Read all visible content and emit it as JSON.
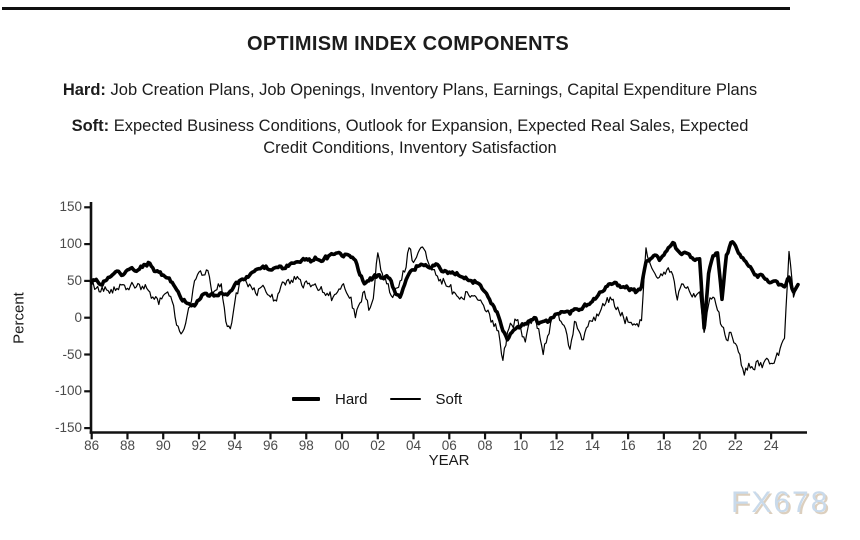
{
  "header": {
    "title": "OPTIMISM INDEX COMPONENTS",
    "hard_prefix": "Hard:",
    "hard_text": "Job Creation Plans, Job Openings, Inventory Plans, Earnings, Capital Expenditure Plans",
    "soft_prefix": "Soft:",
    "soft_line1": "Expected Business Conditions, Outlook for Expansion, Expected Real Sales, Expected",
    "soft_line2": "Credit Conditions, Inventory Satisfaction"
  },
  "watermark": "FX678",
  "colors": {
    "axis": "#111111",
    "tick_text": "#4a4a4a",
    "text": "#1c1c1c",
    "series": "#000000",
    "watermark": "#c9daeb",
    "watermark_shadow": "#dccfbe"
  },
  "chart_data": {
    "type": "line",
    "title": "OPTIMISM INDEX COMPONENTS",
    "xlabel": "YEAR",
    "ylabel": "Percent",
    "grid": false,
    "legend_position": "inside-bottom-center",
    "ylim": [
      -150,
      150
    ],
    "y_ticks": [
      150,
      100,
      50,
      0,
      -50,
      -100,
      -150
    ],
    "x_tick_years": [
      1986,
      1988,
      1990,
      1992,
      1994,
      1996,
      1998,
      2000,
      2002,
      2004,
      2006,
      2008,
      2010,
      2012,
      2014,
      2016,
      2018,
      2020,
      2022,
      2024
    ],
    "x_tick_labels": [
      "86",
      "88",
      "90",
      "92",
      "94",
      "96",
      "98",
      "00",
      "02",
      "04",
      "06",
      "08",
      "10",
      "12",
      "14",
      "16",
      "18",
      "20",
      "22",
      "24"
    ],
    "x_start_year": 1986,
    "x_step_years": 0.25,
    "x_end_year": 2025.5,
    "series": [
      {
        "name": "Hard",
        "stroke_width": 3.6,
        "values": [
          48,
          52,
          45,
          50,
          55,
          60,
          63,
          58,
          65,
          68,
          63,
          70,
          72,
          74,
          63,
          62,
          58,
          54,
          48,
          38,
          26,
          21,
          18,
          16,
          24,
          32,
          30,
          33,
          30,
          34,
          32,
          36,
          45,
          50,
          52,
          55,
          62,
          66,
          68,
          70,
          65,
          68,
          70,
          67,
          70,
          74,
          76,
          78,
          80,
          76,
          82,
          78,
          80,
          84,
          86,
          88,
          84,
          86,
          82,
          78,
          58,
          46,
          50,
          55,
          58,
          54,
          57,
          50,
          32,
          28,
          45,
          60,
          65,
          70,
          72,
          70,
          68,
          73,
          66,
          64,
          62,
          60,
          58,
          55,
          52,
          50,
          48,
          44,
          35,
          25,
          15,
          2,
          -18,
          -30,
          -20,
          -14,
          -12,
          -8,
          -4,
          0,
          -8,
          -5,
          -6,
          0,
          5,
          8,
          8,
          5,
          12,
          10,
          15,
          18,
          22,
          28,
          35,
          42,
          46,
          48,
          44,
          42,
          40,
          38,
          36,
          42,
          76,
          80,
          85,
          78,
          85,
          95,
          102,
          92,
          86,
          88,
          82,
          78,
          80,
          -14,
          60,
          84,
          88,
          25,
          85,
          102,
          98,
          86,
          78,
          70,
          62,
          55,
          58,
          52,
          48,
          50,
          45,
          42,
          55,
          35,
          45
        ]
      },
      {
        "name": "Soft",
        "stroke_width": 1.2,
        "values": [
          45,
          40,
          35,
          42,
          33,
          42,
          38,
          45,
          40,
          48,
          42,
          38,
          45,
          35,
          25,
          18,
          30,
          35,
          22,
          -10,
          -22,
          -8,
          15,
          50,
          62,
          58,
          64,
          30,
          38,
          46,
          -5,
          -15,
          20,
          45,
          50,
          42,
          38,
          30,
          42,
          35,
          28,
          24,
          35,
          48,
          52,
          48,
          56,
          44,
          50,
          42,
          46,
          38,
          34,
          30,
          28,
          35,
          44,
          34,
          28,
          0,
          20,
          36,
          10,
          26,
          88,
          60,
          46,
          30,
          40,
          50,
          62,
          95,
          75,
          88,
          96,
          80,
          65,
          58,
          52,
          48,
          42,
          35,
          28,
          26,
          35,
          30,
          28,
          24,
          10,
          5,
          -12,
          -18,
          -58,
          -20,
          -10,
          -4,
          -15,
          -33,
          -5,
          0,
          -15,
          -50,
          -25,
          0,
          6,
          -5,
          -15,
          -43,
          -5,
          -18,
          -30,
          -12,
          -5,
          5,
          12,
          20,
          28,
          15,
          8,
          0,
          -6,
          -10,
          -8,
          -4,
          95,
          72,
          60,
          55,
          62,
          68,
          58,
          24,
          46,
          40,
          32,
          28,
          35,
          -20,
          18,
          28,
          10,
          -12,
          -30,
          -20,
          -35,
          -50,
          -78,
          -62,
          -70,
          -58,
          -68,
          -55,
          -62,
          -55,
          -42,
          -28,
          90,
          28,
          42
        ]
      }
    ]
  }
}
